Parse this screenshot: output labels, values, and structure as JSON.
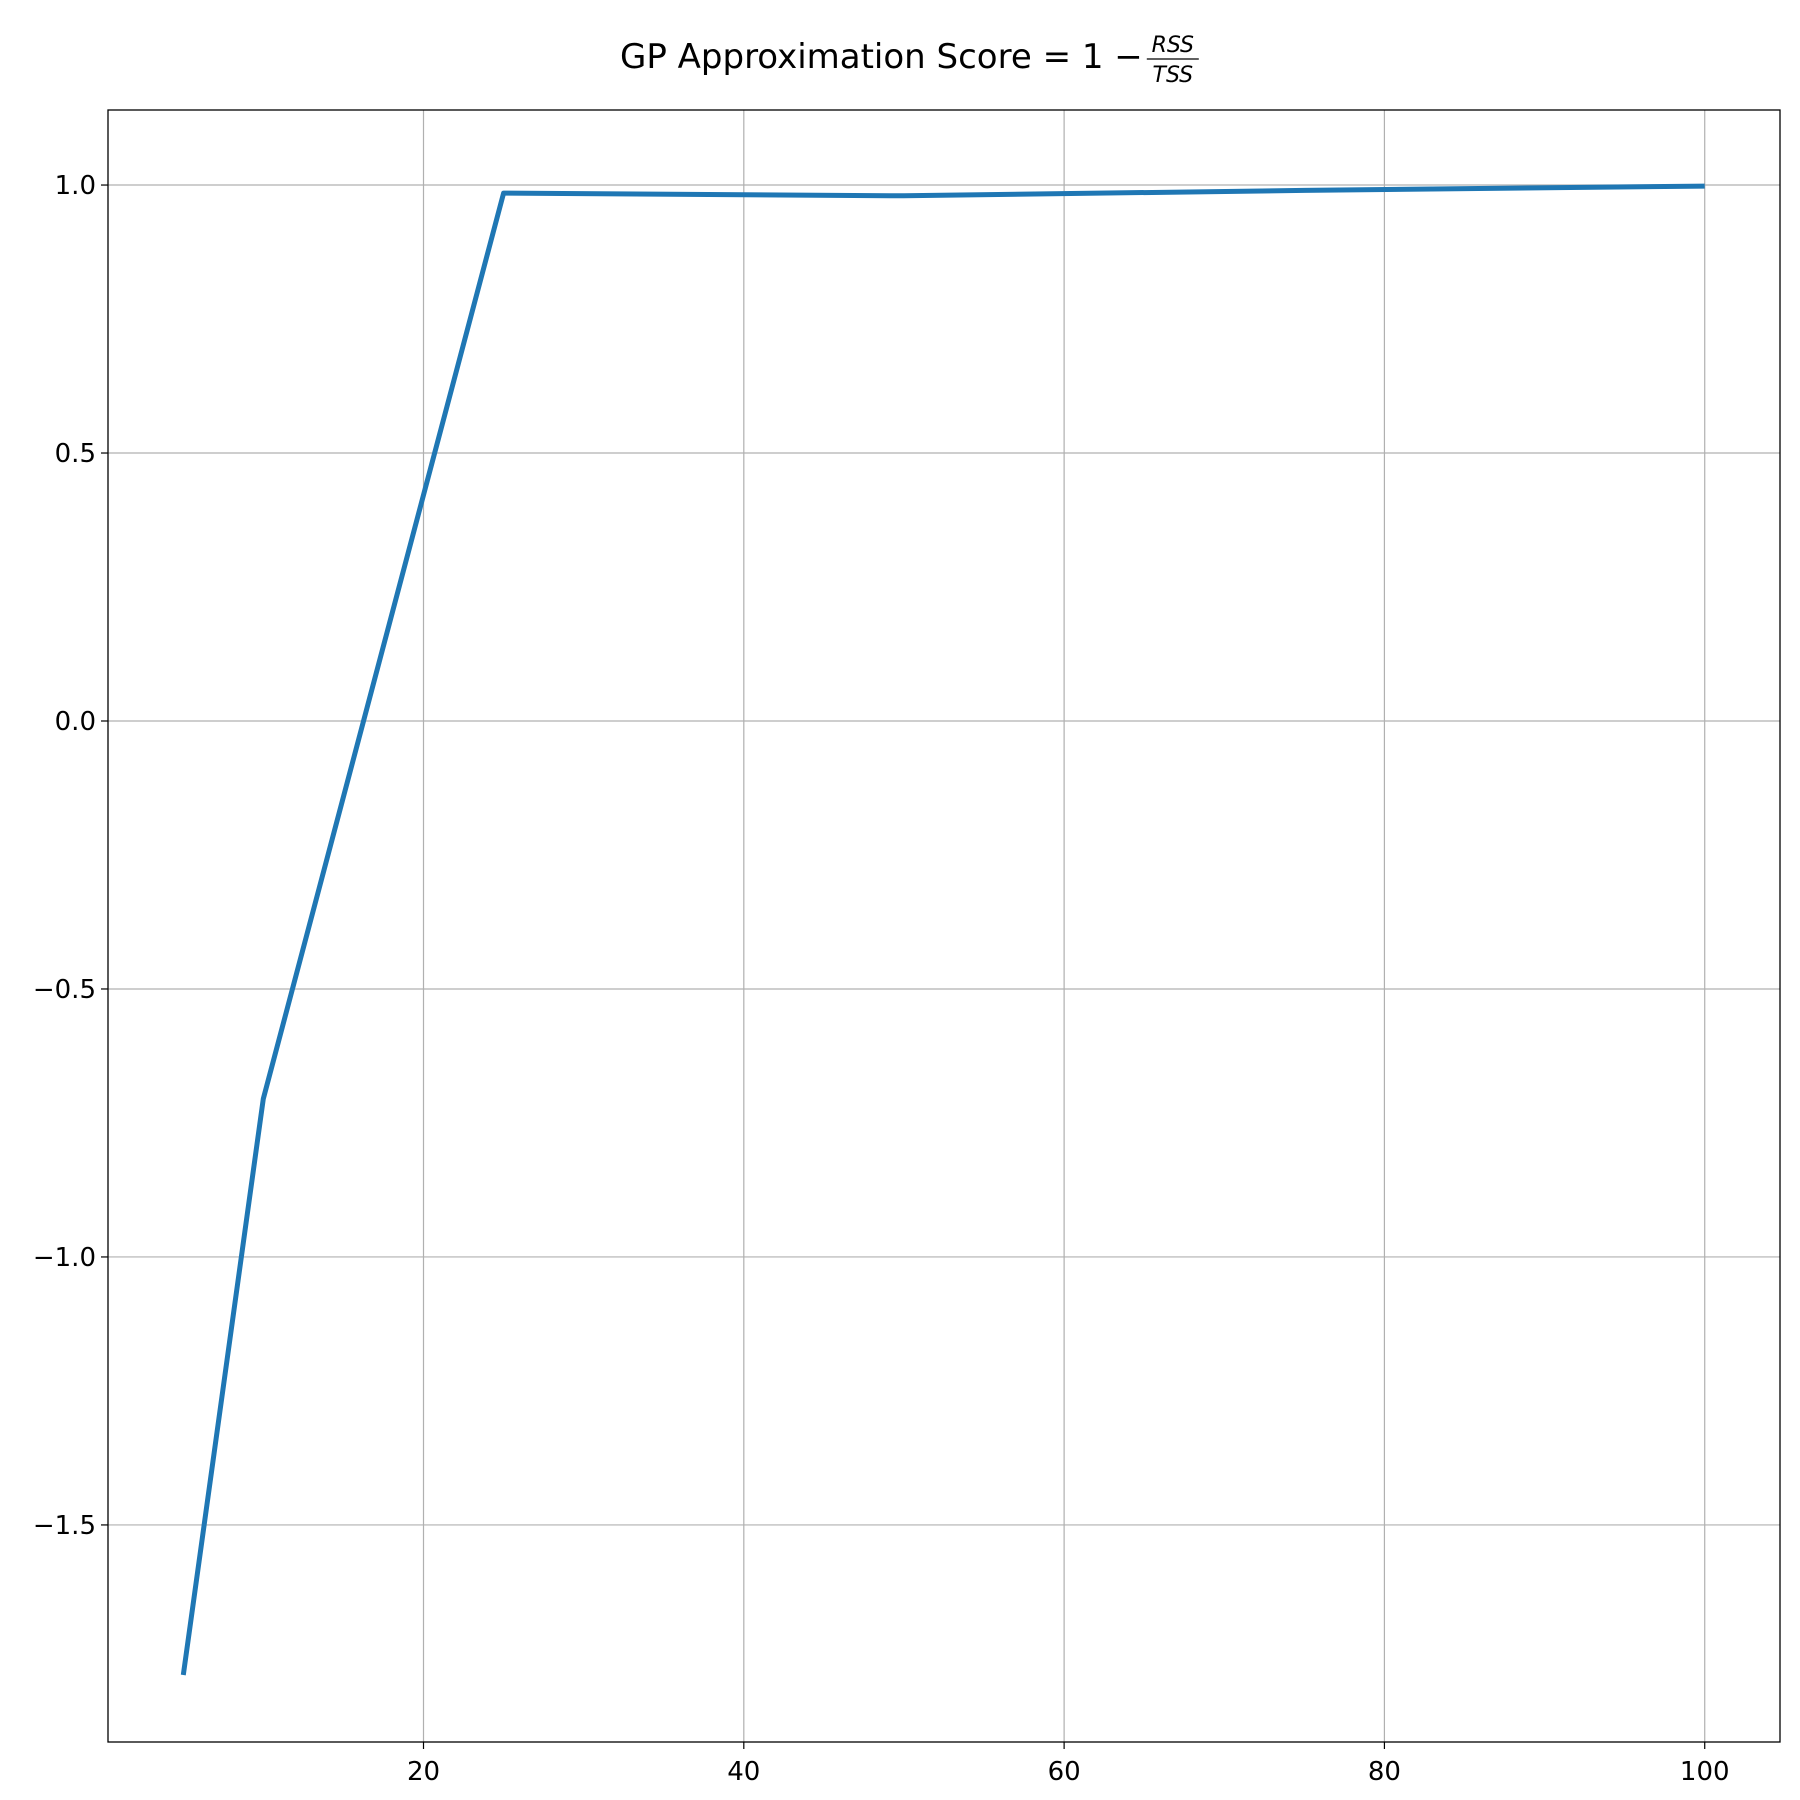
{
  "chart_data": {
    "type": "line",
    "title": {
      "prefix": "GP Approximation Score ",
      "equation": "= 1 − ",
      "numerator": "RSS",
      "denominator": "TSS"
    },
    "xlabel": "",
    "ylabel": "",
    "xlim": [
      0.3,
      104.7
    ],
    "ylim": [
      -1.905,
      1.14
    ],
    "x_ticks": [
      20,
      40,
      60,
      80,
      100
    ],
    "x_tick_labels": [
      "20",
      "40",
      "60",
      "80",
      "100"
    ],
    "y_ticks": [
      1.0,
      0.5,
      0.0,
      -0.5,
      -1.0,
      -1.5
    ],
    "y_tick_labels": [
      "1.0",
      "0.5",
      "0.0",
      "−0.5",
      "−1.0",
      "−1.5"
    ],
    "grid": true,
    "series": [
      {
        "color": "#1f77b4",
        "x": [
          5,
          10,
          25,
          50,
          75,
          100
        ],
        "y": [
          -1.78,
          -0.705,
          0.985,
          0.98,
          0.99,
          0.998
        ]
      }
    ]
  }
}
